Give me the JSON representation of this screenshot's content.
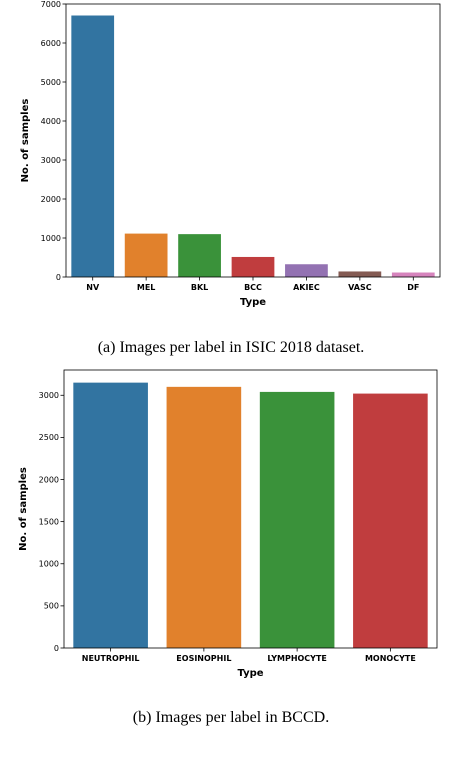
{
  "chart_data": [
    {
      "type": "bar",
      "categories": [
        "NV",
        "MEL",
        "BKL",
        "BCC",
        "AKIEC",
        "VASC",
        "DF"
      ],
      "values": [
        6705,
        1113,
        1099,
        514,
        327,
        142,
        115
      ],
      "colors": [
        "#3274a1",
        "#e1812c",
        "#3a923a",
        "#c03d3e",
        "#9372b2",
        "#845b53",
        "#d684bd"
      ],
      "xlabel": "Type",
      "ylabel": "No. of samples",
      "ylim": [
        0,
        7000
      ],
      "yticks": [
        0,
        1000,
        2000,
        3000,
        4000,
        5000,
        6000,
        7000
      ],
      "grid": false,
      "caption": "(a) Images per label in ISIC 2018 dataset."
    },
    {
      "type": "bar",
      "categories": [
        "NEUTROPHIL",
        "EOSINOPHIL",
        "LYMPHOCYTE",
        "MONOCYTE"
      ],
      "values": [
        3150,
        3100,
        3040,
        3020
      ],
      "colors": [
        "#3274a1",
        "#e1812c",
        "#3a923a",
        "#c03d3e"
      ],
      "xlabel": "Type",
      "ylabel": "No. of samples",
      "ylim": [
        0,
        3300
      ],
      "yticks": [
        0,
        500,
        1000,
        1500,
        2000,
        2500,
        3000
      ],
      "grid": false,
      "caption": "(b) Images per label in BCCD."
    }
  ]
}
